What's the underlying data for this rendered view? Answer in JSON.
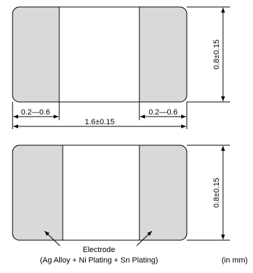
{
  "colors": {
    "electrode_fill": "#d9d9d9",
    "body_fill": "#ffffff",
    "outline": "#000000"
  },
  "top_view": {
    "electrode_left_width": "0.2—0.6",
    "electrode_right_width": "0.2—0.6",
    "total_length": "1.6±0.15",
    "height": "0.8±0.15"
  },
  "bottom_view": {
    "height": "0.8±0.15",
    "callout": {
      "line1": "Electrode",
      "line2": "(Ag Alloy + Ni Plating + Sn Plating)"
    }
  },
  "units_note": "(in mm)"
}
